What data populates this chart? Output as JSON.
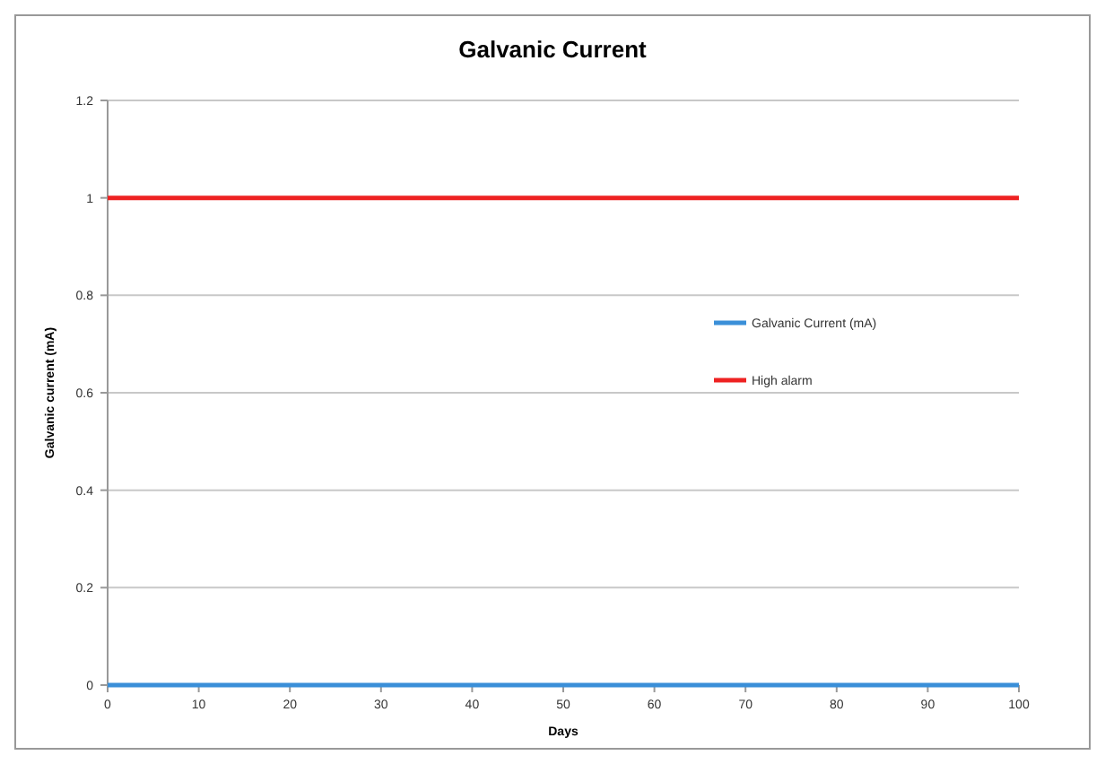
{
  "chart_data": {
    "type": "line",
    "title": "Galvanic Current",
    "xlabel": "Days",
    "ylabel": "Galvanic current (mA)",
    "x": [
      0,
      100
    ],
    "series": [
      {
        "name": "Galvanic Current (mA)",
        "color": "#3a8fd8",
        "values": [
          0,
          0
        ]
      },
      {
        "name": "High alarm",
        "color": "#ee2222",
        "values": [
          1,
          1
        ]
      }
    ],
    "xlim": [
      0,
      100
    ],
    "xticks": [
      0,
      10,
      20,
      30,
      40,
      50,
      60,
      70,
      80,
      90,
      100
    ],
    "ylim": [
      0,
      1.2
    ],
    "yticks": [
      0,
      0.2,
      0.4,
      0.6,
      0.8,
      1,
      1.2
    ],
    "grid": "y",
    "legend": "right",
    "marker": "none",
    "line_style": "solid"
  }
}
